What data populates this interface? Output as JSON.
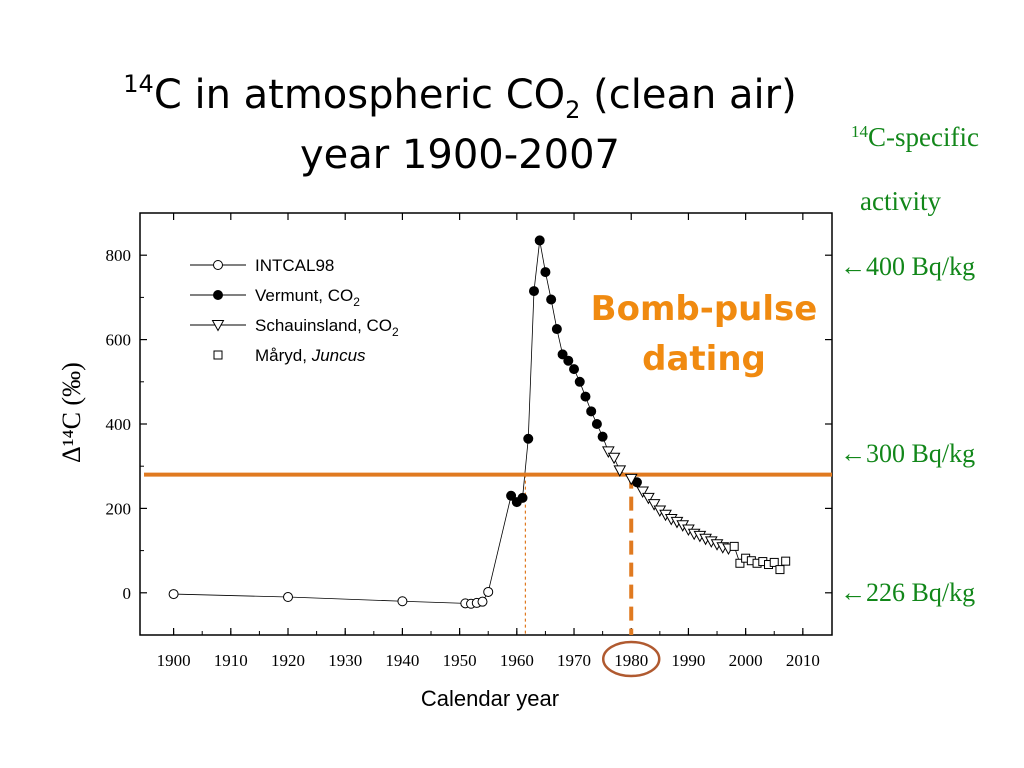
{
  "slide": {
    "title_line1_sup": "14",
    "title_line1_main": "C in atmospheric CO",
    "title_line1_sub": "2",
    "title_line1_tail": " (clean air)",
    "title_line2": "year 1900-2007",
    "activity_sup": "14",
    "activity_line1": "C-specific",
    "activity_line2": "activity",
    "bq_labels": [
      "←400 Bq/kg",
      "←300 Bq/kg",
      "←226 Bq/kg"
    ],
    "annotation_line1": "Bomb-pulse",
    "annotation_line2": "dating",
    "colors": {
      "annotation": "#f08a10",
      "activity_text": "#12871a",
      "threshold_line": "#e07a20",
      "highlight_circle": "#b05a30"
    }
  },
  "chart_data": {
    "type": "scatter",
    "xlabel": "Calendar year",
    "ylabel": "Δ¹⁴C (‰)",
    "xlim": [
      1895,
      2013
    ],
    "ylim": [
      -100,
      900
    ],
    "x_ticks": [
      1900,
      1910,
      1920,
      1930,
      1940,
      1950,
      1960,
      1970,
      1980,
      1990,
      2000,
      2010
    ],
    "y_ticks": [
      0,
      200,
      400,
      600,
      800
    ],
    "grid": false,
    "legend_position": "top-left",
    "threshold_y": 280,
    "marker_year": 1961.5,
    "highlight_year": 1980,
    "series": [
      {
        "name": "INTCAL98",
        "marker": "open-circle",
        "x": [
          1900,
          1920,
          1940,
          1951,
          1952,
          1953,
          1954,
          1955
        ],
        "y": [
          -3,
          -10,
          -20,
          -25,
          -26,
          -24,
          -21,
          2
        ]
      },
      {
        "name": "Vermunt, CO2",
        "legend_main": "Vermunt, CO",
        "legend_sub": "2",
        "marker": "filled-circle",
        "x": [
          1959,
          1960,
          1961,
          1962,
          1963,
          1964,
          1965,
          1966,
          1967,
          1968,
          1969,
          1970,
          1971,
          1972,
          1973,
          1974,
          1975,
          1981
        ],
        "y": [
          230,
          215,
          225,
          365,
          715,
          835,
          760,
          695,
          625,
          565,
          550,
          530,
          500,
          465,
          430,
          400,
          370,
          262
        ]
      },
      {
        "name": "Schauinsland, CO2",
        "legend_main": "Schauinsland, CO",
        "legend_sub": "2",
        "marker": "open-triangle-down",
        "x": [
          1976,
          1977,
          1978,
          1980,
          1982,
          1983,
          1984,
          1985,
          1986,
          1987,
          1988,
          1989,
          1990,
          1991,
          1992,
          1993,
          1994,
          1995,
          1996,
          1997
        ],
        "y": [
          335,
          320,
          290,
          270,
          240,
          225,
          210,
          195,
          185,
          175,
          168,
          160,
          150,
          140,
          135,
          128,
          122,
          115,
          108,
          105
        ]
      },
      {
        "name": "Måryd, Juncus",
        "legend_main": "Måryd, ",
        "legend_italic": "Juncus",
        "marker": "open-square",
        "x": [
          1998,
          1999,
          2000,
          2001,
          2002,
          2003,
          2004,
          2005,
          2006,
          2007
        ],
        "y": [
          110,
          70,
          82,
          76,
          70,
          74,
          67,
          72,
          55,
          75
        ]
      }
    ]
  }
}
